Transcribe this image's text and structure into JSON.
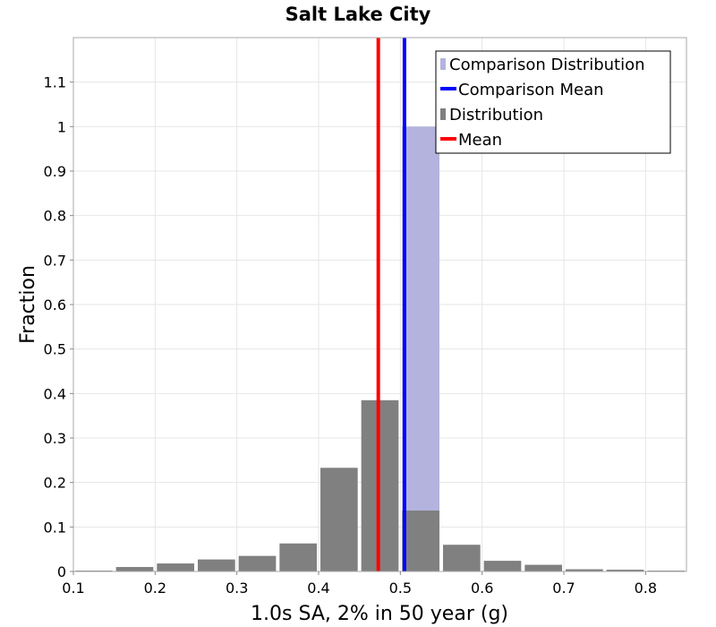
{
  "chart_data": {
    "type": "bar",
    "title": "Salt Lake City",
    "xlabel": "1.0s SA, 2% in 50 year (g)",
    "ylabel": "Fraction",
    "xlim": [
      0.1,
      0.85
    ],
    "ylim": [
      0,
      1.2
    ],
    "xticks": [
      "0.1",
      "0.2",
      "0.3",
      "0.4",
      "0.5",
      "0.6",
      "0.7",
      "0.8"
    ],
    "yticks": [
      "0",
      "0.1",
      "0.2",
      "0.3",
      "0.4",
      "0.5",
      "0.6",
      "0.7",
      "0.8",
      "0.9",
      "1",
      "1.1"
    ],
    "grid": true,
    "legend_position": "top-right",
    "bin_width": 0.05,
    "series": [
      {
        "name": "Comparison Distribution",
        "kind": "histogram",
        "color": "#b3b3de",
        "x": [
          0.525
        ],
        "values": [
          1.0
        ]
      },
      {
        "name": "Comparison Mean",
        "kind": "vline",
        "color": "#0000ff",
        "x": 0.505
      },
      {
        "name": "Distribution",
        "kind": "histogram",
        "color": "#808080",
        "x": [
          0.125,
          0.175,
          0.225,
          0.275,
          0.325,
          0.375,
          0.425,
          0.475,
          0.525,
          0.575,
          0.625,
          0.675,
          0.725,
          0.775,
          0.825
        ],
        "values": [
          0.002,
          0.01,
          0.018,
          0.027,
          0.035,
          0.063,
          0.233,
          0.385,
          0.137,
          0.06,
          0.024,
          0.015,
          0.005,
          0.004,
          0.002
        ]
      },
      {
        "name": "Mean",
        "kind": "vline",
        "color": "#ff0000",
        "x": 0.473
      }
    ]
  }
}
